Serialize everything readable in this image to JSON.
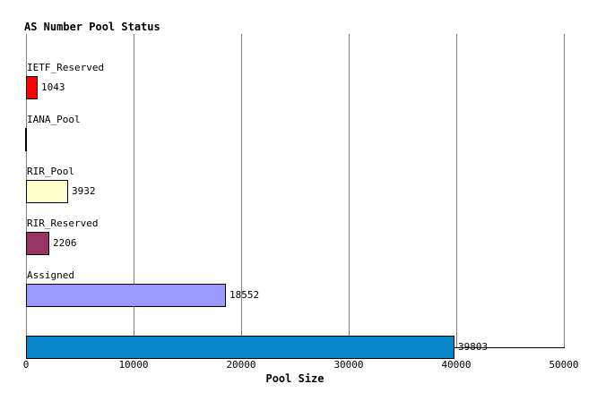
{
  "chart_data": {
    "type": "bar",
    "orientation": "horizontal",
    "title": "AS Number Pool Status",
    "xlabel": "Pool Size",
    "xlim": [
      0,
      50000
    ],
    "xticks": [
      0,
      10000,
      20000,
      30000,
      40000,
      50000
    ],
    "grid": true,
    "legend_position": "none",
    "categories": [
      "IETF_Reserved",
      "IANA_Pool",
      "RIR_Pool",
      "RIR_Reserved",
      "Assigned",
      ""
    ],
    "values": [
      1043,
      0,
      3932,
      2206,
      18552,
      39803
    ],
    "bar_value_labels": [
      "1043",
      "",
      "3932",
      "2206",
      "18552",
      "39803"
    ],
    "bar_colors": [
      "#ff0000",
      "#000000",
      "#ffffcc",
      "#993366",
      "#9999ff",
      "#0884c8"
    ]
  },
  "colors": {
    "background": "#ffffff",
    "grid": "#808080",
    "axis": "#000000",
    "text": "#000000"
  }
}
